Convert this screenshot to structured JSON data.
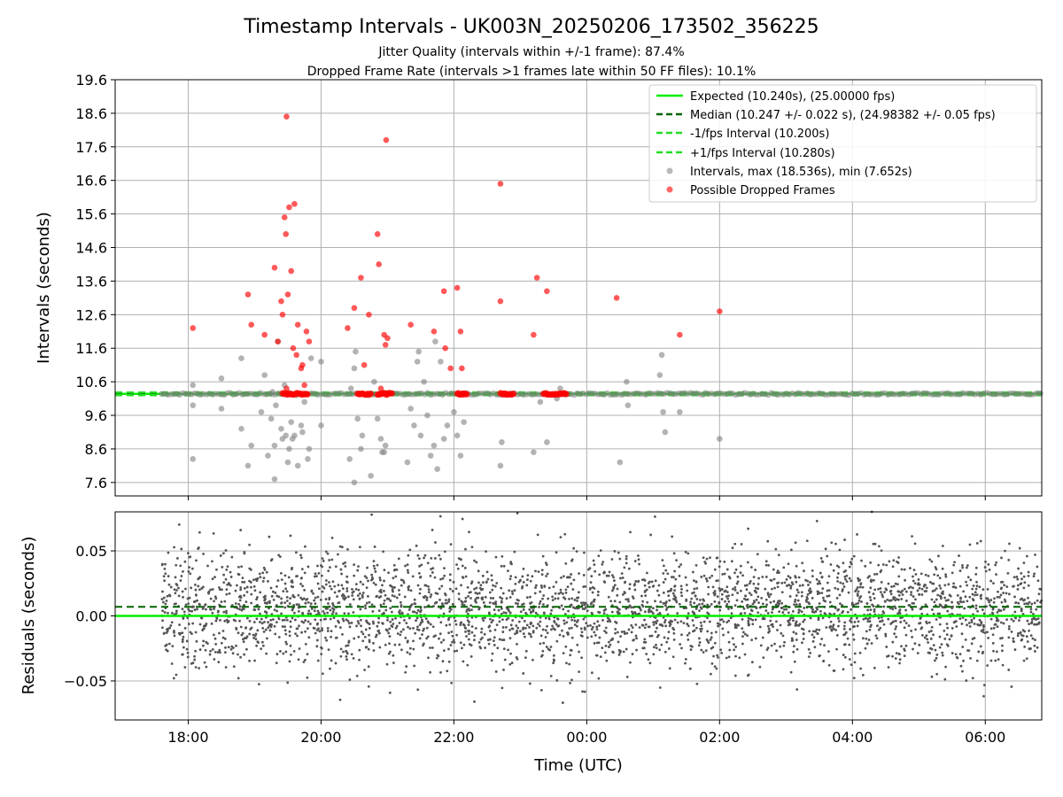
{
  "title": "Timestamp Intervals - UK003N_20250206_173502_356225",
  "subtitle_jitter": "Jitter Quality (intervals within +/-1 frame): 87.4%",
  "subtitle_dropped": "Dropped Frame Rate (intervals >1 frames late within 50 FF files): 10.1%",
  "colors": {
    "expected": "#00ee00",
    "median": "#006400",
    "interval_band": "#22dd22",
    "intervals": "#808080",
    "dropped": "#ff0000",
    "residual_points": "#555555",
    "grid": "#b0b0b0"
  },
  "chart_data": [
    {
      "type": "scatter",
      "panel": "top",
      "ylabel": "Intervals (seconds)",
      "ylim": [
        7.2,
        19.6
      ],
      "yticks": [
        "7.6",
        "8.6",
        "9.6",
        "10.6",
        "11.6",
        "12.6",
        "13.6",
        "14.6",
        "15.6",
        "16.6",
        "17.6",
        "18.6",
        "19.6"
      ],
      "xlim_hours": [
        16.9,
        30.85
      ],
      "grid": true,
      "legend_position": "top-right",
      "reference_lines": [
        {
          "name": "Expected (10.240s), (25.00000 fps)",
          "y": 10.24,
          "style": "solid"
        },
        {
          "name": "Median (10.247 +/- 0.022 s), (24.98382 +/- 0.05 fps)",
          "y": 10.247,
          "style": "dashed"
        },
        {
          "name": "-1/fps Interval (10.200s)",
          "y": 10.2,
          "style": "dashed"
        },
        {
          "name": "+1/fps Interval (10.280s)",
          "y": 10.28,
          "style": "dashed"
        }
      ],
      "series": [
        {
          "name": "Intervals, max (18.536s), min (7.652s)",
          "baseline_range_hours": [
            17.6,
            30.85
          ],
          "baseline_value": 10.24,
          "points": [
            [
              18.07,
              8.3
            ],
            [
              18.07,
              9.9
            ],
            [
              18.07,
              10.5
            ],
            [
              18.5,
              9.8
            ],
            [
              18.5,
              10.7
            ],
            [
              18.8,
              11.3
            ],
            [
              18.8,
              9.2
            ],
            [
              18.9,
              8.1
            ],
            [
              18.95,
              8.7
            ],
            [
              19.1,
              9.7
            ],
            [
              19.15,
              10.8
            ],
            [
              19.2,
              8.4
            ],
            [
              19.25,
              9.5
            ],
            [
              19.27,
              10.3
            ],
            [
              19.3,
              7.7
            ],
            [
              19.3,
              8.7
            ],
            [
              19.32,
              9.9
            ],
            [
              19.35,
              11.8
            ],
            [
              19.4,
              9.2
            ],
            [
              19.42,
              8.9
            ],
            [
              19.45,
              10.5
            ],
            [
              19.47,
              9.0
            ],
            [
              19.5,
              8.2
            ],
            [
              19.52,
              8.6
            ],
            [
              19.55,
              9.4
            ],
            [
              19.57,
              8.9
            ],
            [
              19.6,
              9.0
            ],
            [
              19.63,
              10.2
            ],
            [
              19.65,
              8.1
            ],
            [
              19.7,
              9.3
            ],
            [
              19.72,
              9.1
            ],
            [
              19.75,
              10.0
            ],
            [
              19.8,
              8.3
            ],
            [
              19.82,
              8.6
            ],
            [
              19.85,
              11.3
            ],
            [
              20.0,
              11.2
            ],
            [
              20.0,
              9.3
            ],
            [
              20.43,
              8.3
            ],
            [
              20.45,
              10.4
            ],
            [
              20.5,
              7.6
            ],
            [
              20.5,
              11.0
            ],
            [
              20.52,
              11.5
            ],
            [
              20.55,
              9.5
            ],
            [
              20.6,
              8.6
            ],
            [
              20.62,
              9.0
            ],
            [
              20.7,
              10.2
            ],
            [
              20.75,
              7.8
            ],
            [
              20.8,
              10.6
            ],
            [
              20.85,
              9.5
            ],
            [
              20.9,
              8.9
            ],
            [
              20.92,
              8.5
            ],
            [
              20.95,
              8.5
            ],
            [
              20.97,
              8.7
            ],
            [
              21.3,
              8.2
            ],
            [
              21.35,
              9.8
            ],
            [
              21.4,
              9.3
            ],
            [
              21.45,
              11.2
            ],
            [
              21.47,
              11.5
            ],
            [
              21.5,
              9.0
            ],
            [
              21.55,
              10.6
            ],
            [
              21.6,
              9.6
            ],
            [
              21.65,
              8.4
            ],
            [
              21.7,
              8.7
            ],
            [
              21.72,
              11.8
            ],
            [
              21.75,
              8.0
            ],
            [
              21.8,
              11.2
            ],
            [
              21.85,
              8.9
            ],
            [
              21.9,
              9.3
            ],
            [
              22.0,
              9.7
            ],
            [
              22.05,
              9.0
            ],
            [
              22.1,
              8.4
            ],
            [
              22.15,
              9.4
            ],
            [
              22.7,
              8.1
            ],
            [
              22.72,
              8.8
            ],
            [
              23.2,
              8.5
            ],
            [
              23.3,
              10.0
            ],
            [
              23.4,
              8.8
            ],
            [
              23.55,
              10.1
            ],
            [
              23.6,
              10.4
            ],
            [
              24.5,
              8.2
            ],
            [
              24.6,
              10.6
            ],
            [
              24.62,
              9.9
            ],
            [
              25.1,
              10.8
            ],
            [
              25.13,
              11.4
            ],
            [
              25.15,
              9.7
            ],
            [
              25.18,
              9.1
            ],
            [
              25.4,
              9.7
            ],
            [
              26.0,
              8.9
            ]
          ]
        },
        {
          "name": "Possible Dropped Frames",
          "clusters_hours": [
            [
              19.42,
              19.8
            ],
            [
              20.55,
              20.75
            ],
            [
              20.85,
              21.07
            ],
            [
              22.05,
              22.2
            ],
            [
              22.7,
              22.9
            ],
            [
              23.35,
              23.7
            ]
          ],
          "cluster_value": 10.24,
          "points": [
            [
              18.07,
              12.2
            ],
            [
              18.9,
              13.2
            ],
            [
              18.95,
              12.3
            ],
            [
              19.15,
              12.0
            ],
            [
              19.3,
              14.0
            ],
            [
              19.35,
              11.8
            ],
            [
              19.4,
              13.0
            ],
            [
              19.42,
              12.6
            ],
            [
              19.45,
              15.5
            ],
            [
              19.47,
              15.0
            ],
            [
              19.48,
              18.5
            ],
            [
              19.5,
              13.2
            ],
            [
              19.52,
              15.8
            ],
            [
              19.55,
              13.9
            ],
            [
              19.58,
              11.6
            ],
            [
              19.6,
              15.9
            ],
            [
              19.63,
              11.4
            ],
            [
              19.65,
              12.3
            ],
            [
              19.7,
              11.0
            ],
            [
              19.72,
              11.1
            ],
            [
              19.75,
              10.5
            ],
            [
              19.78,
              12.1
            ],
            [
              19.82,
              11.8
            ],
            [
              19.48,
              10.4
            ],
            [
              20.4,
              12.2
            ],
            [
              20.5,
              12.8
            ],
            [
              20.6,
              13.7
            ],
            [
              20.65,
              11.1
            ],
            [
              20.72,
              12.6
            ],
            [
              20.85,
              15.0
            ],
            [
              20.87,
              14.1
            ],
            [
              20.9,
              10.4
            ],
            [
              20.95,
              12.0
            ],
            [
              20.97,
              11.7
            ],
            [
              21.0,
              11.9
            ],
            [
              20.98,
              17.8
            ],
            [
              21.35,
              12.3
            ],
            [
              21.7,
              12.1
            ],
            [
              21.85,
              13.3
            ],
            [
              21.87,
              11.6
            ],
            [
              21.95,
              11.0
            ],
            [
              22.05,
              13.4
            ],
            [
              22.1,
              12.1
            ],
            [
              22.12,
              11.0
            ],
            [
              22.7,
              16.5
            ],
            [
              22.7,
              13.0
            ],
            [
              23.2,
              12.0
            ],
            [
              23.25,
              13.7
            ],
            [
              23.4,
              13.3
            ],
            [
              24.45,
              13.1
            ],
            [
              25.4,
              12.0
            ],
            [
              26.0,
              12.7
            ]
          ]
        }
      ]
    },
    {
      "type": "scatter",
      "panel": "bottom",
      "xlabel": "Time (UTC)",
      "ylabel": "Residuals (seconds)",
      "ylim": [
        -0.08,
        0.08
      ],
      "yticks": [
        "−0.05",
        "0.00",
        "0.05"
      ],
      "ytick_values": [
        -0.05,
        0.0,
        0.05
      ],
      "xticks": [
        "18:00",
        "20:00",
        "22:00",
        "00:00",
        "02:00",
        "04:00",
        "06:00"
      ],
      "xtick_hours": [
        18,
        20,
        22,
        24,
        26,
        28,
        30
      ],
      "xlim_hours": [
        16.9,
        30.85
      ],
      "grid": true,
      "reference_lines": [
        {
          "name": "Expected",
          "y": 0.0,
          "style": "solid"
        },
        {
          "name": "Median",
          "y": 0.007,
          "style": "dashed"
        }
      ],
      "residual_summary": {
        "time_range_hours": [
          17.6,
          30.85
        ],
        "center": 0.005,
        "spread_std": 0.022,
        "clip": 0.08
      }
    }
  ]
}
